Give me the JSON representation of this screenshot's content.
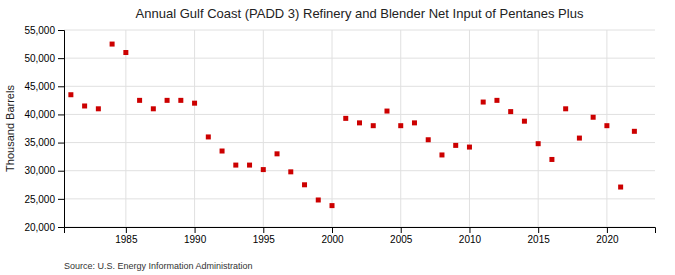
{
  "chart_data": {
    "type": "scatter",
    "title": "Annual Gulf Coast (PADD 3) Refinery and Blender Net Input of Pentanes Plus",
    "y_label": "Thousand Barrels",
    "annotation": "Source: U.S. Energy Information Administration",
    "color": "#cc0000",
    "marker": "square",
    "grid": true,
    "x": [
      1981,
      1982,
      1983,
      1984,
      1985,
      1986,
      1987,
      1988,
      1989,
      1990,
      1991,
      1992,
      1993,
      1994,
      1995,
      1996,
      1997,
      1998,
      1999,
      2000,
      2001,
      2002,
      2003,
      2004,
      2005,
      2006,
      2007,
      2008,
      2009,
      2010,
      2011,
      2012,
      2013,
      2014,
      2015,
      2016,
      2017,
      2018,
      2019,
      2020,
      2021,
      2022
    ],
    "values": [
      43500,
      41500,
      41000,
      52500,
      51000,
      42500,
      41000,
      42500,
      42500,
      42000,
      36000,
      33500,
      31000,
      31000,
      30200,
      33000,
      29800,
      27500,
      24800,
      23800,
      39300,
      38500,
      38000,
      40600,
      38000,
      38500,
      35500,
      32800,
      34500,
      34200,
      42200,
      42500,
      40500,
      38800,
      34800,
      32000,
      41000,
      35800,
      39500,
      38000,
      27100,
      37000
    ],
    "xlim": [
      1980.5,
      2023.5
    ],
    "xticks": [
      1985,
      1990,
      1995,
      2000,
      2005,
      2010,
      2015,
      2020
    ],
    "ylim": [
      20000,
      55000
    ],
    "yticks": [
      {
        "value": 20000,
        "label": "20,000"
      },
      {
        "value": 25000,
        "label": "25,000"
      },
      {
        "value": 30000,
        "label": "30,000"
      },
      {
        "value": 35000,
        "label": "35,000"
      },
      {
        "value": 40000,
        "label": "40,000"
      },
      {
        "value": 45000,
        "label": "45,000"
      },
      {
        "value": 50000,
        "label": "50,000"
      },
      {
        "value": 55000,
        "label": "55,000"
      }
    ]
  }
}
